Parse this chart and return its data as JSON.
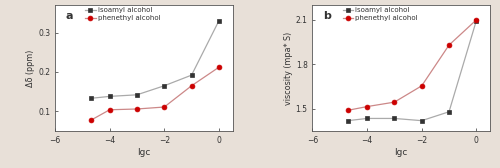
{
  "panel_a": {
    "label": "a",
    "xlabel": "lgc",
    "ylabel": "Δδ (ppm)",
    "xlim": [
      -6,
      0.5
    ],
    "ylim": [
      0.05,
      0.37
    ],
    "xticks": [
      -6,
      -4,
      -2,
      0
    ],
    "yticks": [
      0.1,
      0.2,
      0.3
    ],
    "isoamyl": {
      "x": [
        -4.7,
        -4.0,
        -3.0,
        -2.0,
        -1.0,
        0.0
      ],
      "y": [
        0.133,
        0.138,
        0.142,
        0.165,
        0.192,
        0.33
      ],
      "line_color": "#aaaaaa",
      "marker_color": "#333333",
      "marker": "s",
      "label": "isoamyl alcohol"
    },
    "phenethyl": {
      "x": [
        -4.7,
        -4.0,
        -3.0,
        -2.0,
        -1.0,
        0.0
      ],
      "y": [
        0.077,
        0.104,
        0.106,
        0.111,
        0.165,
        0.212
      ],
      "line_color": "#cc8888",
      "marker_color": "#cc0000",
      "marker": "o",
      "label": "phenethyl alcohol"
    }
  },
  "panel_b": {
    "label": "b",
    "xlabel": "lgc",
    "ylabel": "viscosity (mpa* S)",
    "xlim": [
      -6,
      0.5
    ],
    "ylim": [
      1.35,
      2.2
    ],
    "xticks": [
      -6,
      -4,
      -2,
      0
    ],
    "yticks": [
      1.5,
      1.8,
      2.1
    ],
    "isoamyl": {
      "x": [
        -4.7,
        -4.0,
        -3.0,
        -2.0,
        -1.0,
        0.0
      ],
      "y": [
        1.42,
        1.435,
        1.435,
        1.42,
        1.48,
        2.095
      ],
      "line_color": "#aaaaaa",
      "marker_color": "#333333",
      "marker": "s",
      "label": "isoamyl alcohol"
    },
    "phenethyl": {
      "x": [
        -4.7,
        -4.0,
        -3.0,
        -2.0,
        -1.0,
        0.0
      ],
      "y": [
        1.49,
        1.515,
        1.545,
        1.655,
        1.93,
        2.1
      ],
      "line_color": "#cc8888",
      "marker_color": "#cc0000",
      "marker": "o",
      "label": "phenethyl alcohol"
    }
  },
  "background_color": "#ffffff",
  "figure_facecolor": "#e8e0d8"
}
